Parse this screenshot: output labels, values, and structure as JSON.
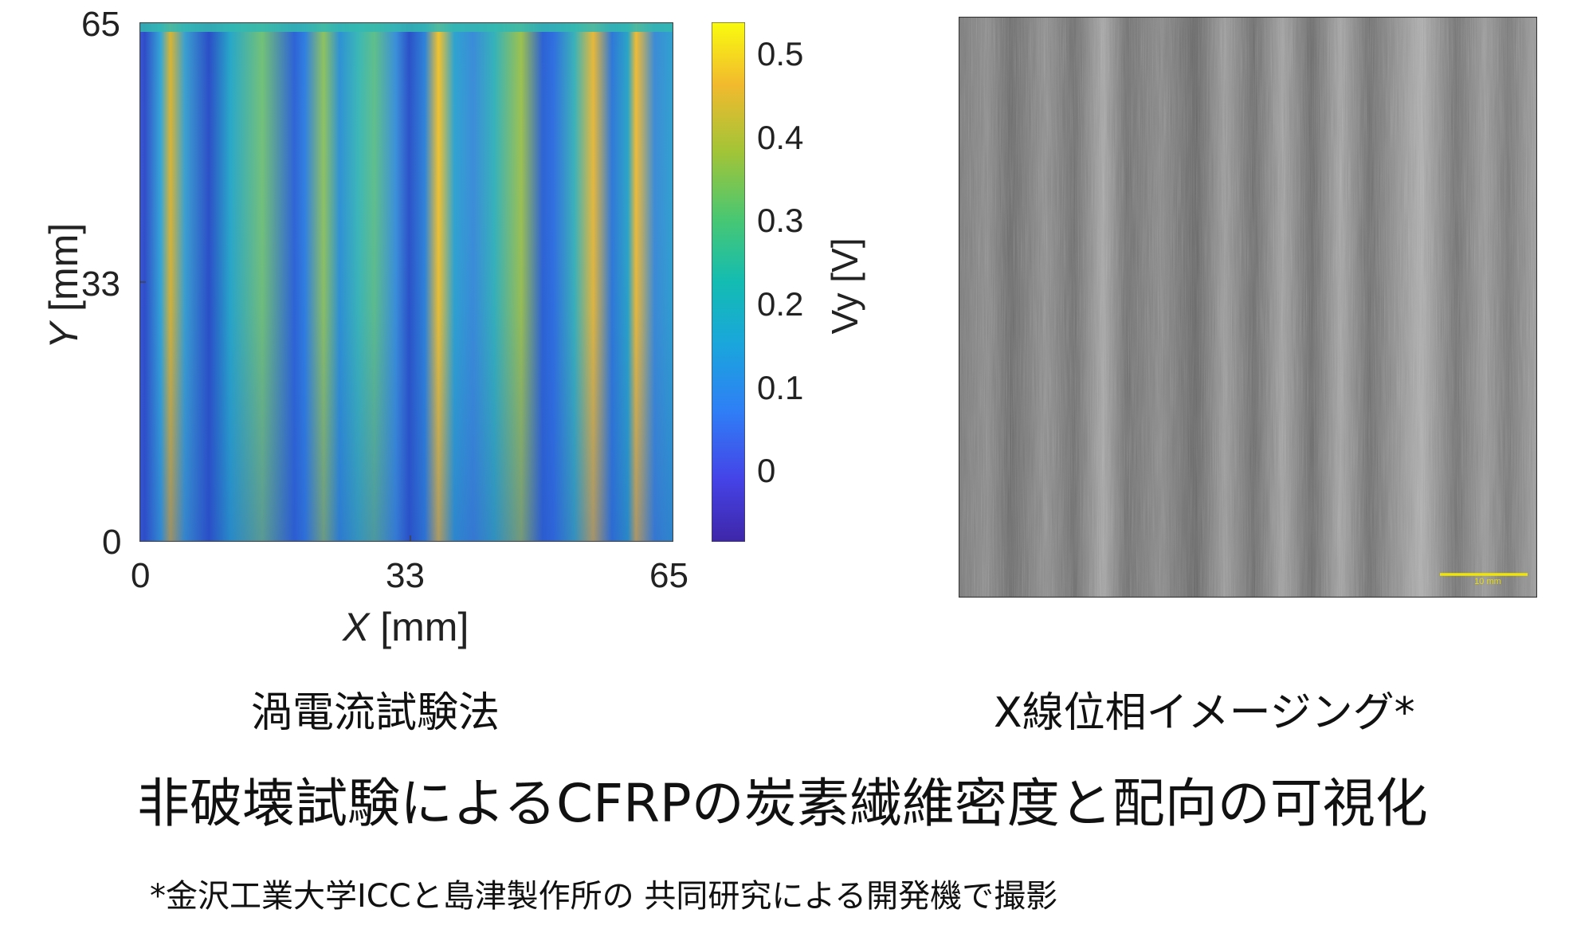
{
  "heatmap": {
    "x_ticks": [
      "0",
      "33",
      "65"
    ],
    "y_ticks": [
      "0",
      "33",
      "65"
    ],
    "x_label_var": "X",
    "x_label_unit": " [mm]",
    "y_label_var": "Y",
    "y_label_unit": " [mm]",
    "colorbar_label": "Vy [V]",
    "colorbar_ticks": [
      "0",
      "0.1",
      "0.2",
      "0.3",
      "0.4",
      "0.5"
    ],
    "caption": "渦電流試験法"
  },
  "xray": {
    "scale_label": "10 mm",
    "caption": "X線位相イメージング*"
  },
  "title": "非破壊試験によるCFRPの炭素繊維密度と配向の可視化",
  "footnote": "*金沢工業大学ICCと島津製作所の 共同研究による開発機で撮影",
  "chart_data": {
    "type": "heatmap",
    "xlabel": "X [mm]",
    "ylabel": "Y [mm]",
    "xlim": [
      0,
      65
    ],
    "ylim": [
      0,
      65
    ],
    "colorbar": {
      "label": "Vy [V]",
      "range": [
        -0.08,
        0.54
      ],
      "ticks": [
        0,
        0.1,
        0.2,
        0.3,
        0.4,
        0.5
      ],
      "colormap": "parula"
    },
    "vertical_bands": [
      {
        "x": 0.5,
        "value": -0.03
      },
      {
        "x": 5.0,
        "value": 0.42
      },
      {
        "x": 9.5,
        "value": -0.02
      },
      {
        "x": 15.0,
        "value": 0.33
      },
      {
        "x": 20.5,
        "value": -0.02
      },
      {
        "x": 23.0,
        "value": 0.36
      },
      {
        "x": 25.5,
        "value": 0.05
      },
      {
        "x": 28.5,
        "value": 0.3
      },
      {
        "x": 33.5,
        "value": -0.01
      },
      {
        "x": 37.0,
        "value": 0.5
      },
      {
        "x": 41.0,
        "value": 0.05
      },
      {
        "x": 46.5,
        "value": 0.37
      },
      {
        "x": 50.0,
        "value": -0.02
      },
      {
        "x": 55.5,
        "value": 0.45
      },
      {
        "x": 57.7,
        "value": 0.02
      },
      {
        "x": 60.5,
        "value": 0.48
      },
      {
        "x": 63.5,
        "value": 0.03
      }
    ]
  }
}
